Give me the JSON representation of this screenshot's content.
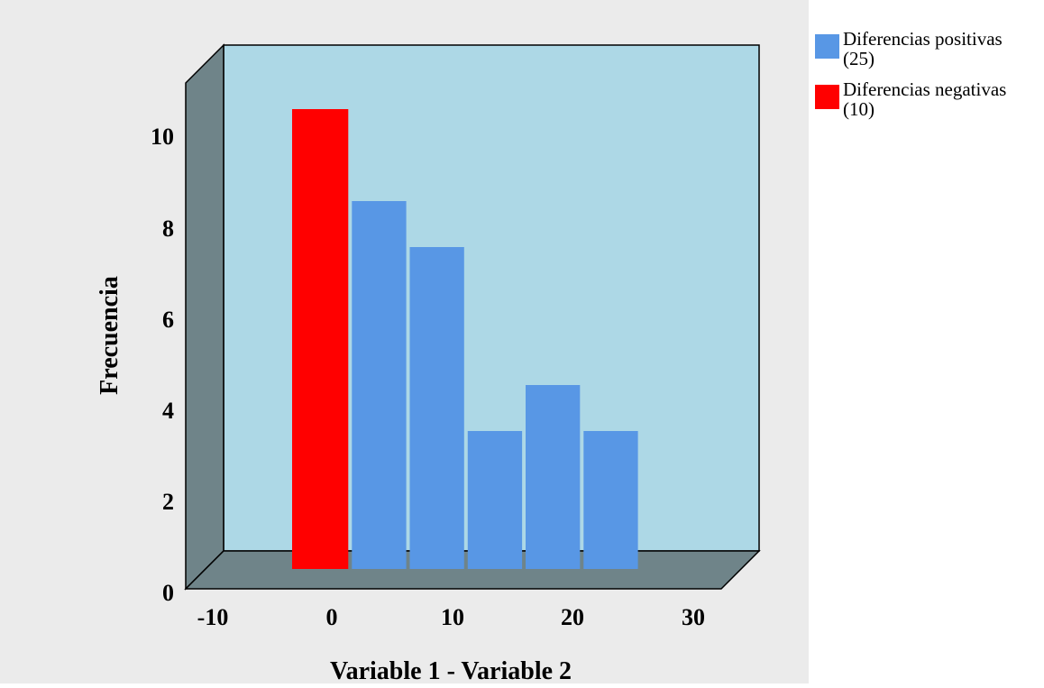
{
  "chart_data": {
    "type": "bar",
    "xlabel": "Variable 1 - Variable 2",
    "ylabel": "Frecuencia",
    "xlim": [
      -10,
      30
    ],
    "ylim": [
      0,
      11
    ],
    "x_ticks": [
      "-10",
      "0",
      "10",
      "20",
      "30"
    ],
    "y_ticks": [
      "0",
      "2",
      "4",
      "6",
      "8",
      "10"
    ],
    "bin_width": 5,
    "legend_position": "top-right",
    "series": [
      {
        "key": "neg",
        "legend_lines": [
          "Diferencias negativas",
          "(10)"
        ],
        "color": "#ff0000",
        "bins": [
          {
            "start": -2.5,
            "end": 2.5,
            "value": 10
          }
        ]
      },
      {
        "key": "pos",
        "legend_lines": [
          "Diferencias positivas",
          "(25)"
        ],
        "color": "#5897e5",
        "bins": [
          {
            "start": 2.5,
            "end": 7.5,
            "value": 8
          },
          {
            "start": 7.5,
            "end": 12.5,
            "value": 7
          },
          {
            "start": 12.5,
            "end": 17.5,
            "value": 3
          },
          {
            "start": 17.5,
            "end": 22.5,
            "value": 4
          },
          {
            "start": 22.5,
            "end": 27.5,
            "value": 3
          }
        ]
      }
    ],
    "legend_order": [
      "pos",
      "neg"
    ],
    "colors": {
      "background": "#ebebeb",
      "plot_back": "#add8e6",
      "walls": "#6f8489",
      "grid": false
    }
  }
}
